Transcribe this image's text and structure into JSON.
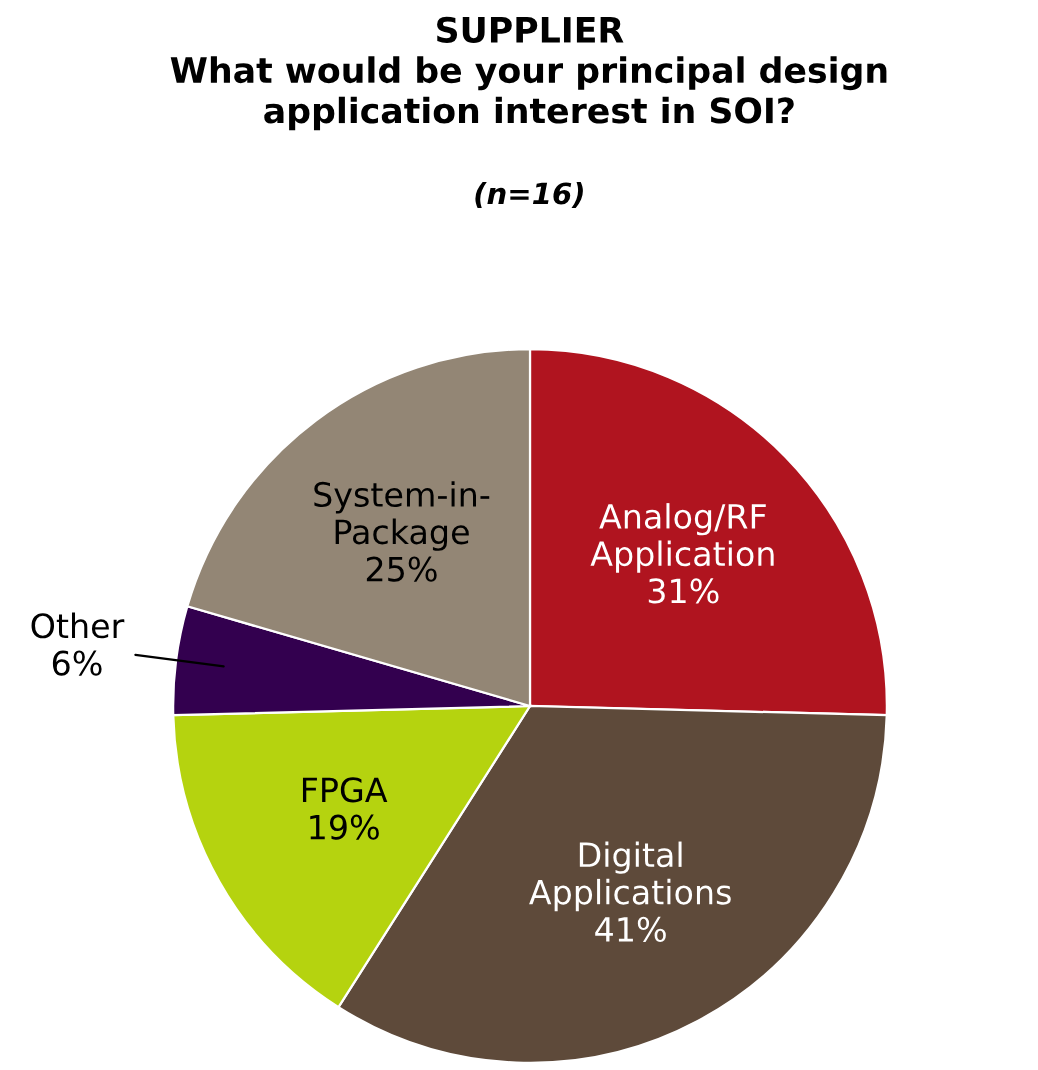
{
  "chart_data": {
    "type": "pie",
    "title": "SUPPLIER\nWhat would be your principal design\napplication interest in SOI?",
    "subtitle": "(n=16)",
    "categories": [
      "Analog/RF\nApplication",
      "Digital\nApplications",
      "FPGA",
      "Other",
      "System-in-\nPackage"
    ],
    "values": [
      31,
      41,
      19,
      6,
      25
    ],
    "value_labels": [
      "31%",
      "41%",
      "19%",
      "6%",
      "25%"
    ],
    "colors": [
      "#b0141f",
      "#5e4a3a",
      "#b5d30f",
      "#33004f",
      "#938675"
    ],
    "legend": false
  }
}
